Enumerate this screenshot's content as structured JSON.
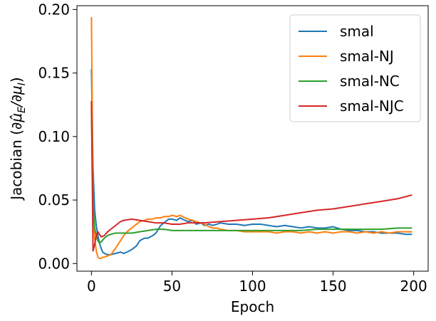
{
  "chart_data": {
    "type": "line",
    "title": "",
    "xlabel": "Epoch",
    "ylabel_prefix": "Jacobian (",
    "ylabel_math": "∂μ̂",
    "ylabel_sub1": "E",
    "ylabel_mid": "/∂μ",
    "ylabel_sub2": "I",
    "ylabel_suffix": ")",
    "xlim": [
      -9,
      209
    ],
    "ylim": [
      -0.006,
      0.203
    ],
    "xticks": [
      0,
      50,
      100,
      150,
      200
    ],
    "xtick_labels": [
      "0",
      "50",
      "100",
      "150",
      "200"
    ],
    "yticks": [
      0.0,
      0.05,
      0.1,
      0.15,
      0.2
    ],
    "ytick_labels": [
      "0.00",
      "0.05",
      "0.10",
      "0.15",
      "0.20"
    ],
    "legend_position": "top-right",
    "series": [
      {
        "name": "smal",
        "color": "#1f77b4",
        "x": [
          0,
          1,
          2,
          3,
          4,
          5,
          6,
          7,
          8,
          10,
          12,
          15,
          18,
          20,
          22,
          25,
          28,
          30,
          33,
          35,
          38,
          40,
          43,
          45,
          48,
          50,
          53,
          55,
          58,
          60,
          63,
          65,
          68,
          70,
          73,
          75,
          78,
          80,
          85,
          90,
          95,
          100,
          105,
          110,
          115,
          120,
          125,
          130,
          135,
          140,
          145,
          150,
          155,
          160,
          165,
          170,
          175,
          180,
          185,
          190,
          195,
          199
        ],
        "y": [
          0.153,
          0.075,
          0.042,
          0.03,
          0.022,
          0.016,
          0.012,
          0.009,
          0.008,
          0.007,
          0.007,
          0.008,
          0.009,
          0.008,
          0.009,
          0.011,
          0.014,
          0.018,
          0.02,
          0.02,
          0.022,
          0.024,
          0.03,
          0.032,
          0.035,
          0.035,
          0.034,
          0.036,
          0.034,
          0.033,
          0.034,
          0.031,
          0.032,
          0.03,
          0.031,
          0.03,
          0.031,
          0.032,
          0.031,
          0.031,
          0.03,
          0.031,
          0.031,
          0.03,
          0.029,
          0.03,
          0.029,
          0.028,
          0.029,
          0.028,
          0.028,
          0.029,
          0.027,
          0.026,
          0.026,
          0.025,
          0.025,
          0.024,
          0.024,
          0.024,
          0.023,
          0.023
        ]
      },
      {
        "name": "smal-NJ",
        "color": "#ff7f0e",
        "x": [
          0,
          1,
          2,
          3,
          4,
          5,
          6,
          7,
          8,
          10,
          12,
          15,
          18,
          20,
          22,
          25,
          28,
          30,
          33,
          35,
          38,
          40,
          43,
          45,
          48,
          50,
          53,
          55,
          58,
          60,
          63,
          65,
          68,
          70,
          73,
          75,
          78,
          80,
          85,
          90,
          95,
          100,
          105,
          110,
          115,
          120,
          125,
          130,
          135,
          140,
          145,
          150,
          155,
          160,
          165,
          170,
          175,
          180,
          185,
          190,
          195,
          199
        ],
        "y": [
          0.194,
          0.05,
          0.02,
          0.01,
          0.005,
          0.004,
          0.004,
          0.005,
          0.005,
          0.006,
          0.007,
          0.012,
          0.018,
          0.022,
          0.025,
          0.028,
          0.031,
          0.033,
          0.034,
          0.035,
          0.035,
          0.036,
          0.036,
          0.037,
          0.037,
          0.038,
          0.037,
          0.038,
          0.036,
          0.035,
          0.034,
          0.033,
          0.032,
          0.031,
          0.029,
          0.028,
          0.028,
          0.027,
          0.026,
          0.026,
          0.025,
          0.025,
          0.025,
          0.025,
          0.024,
          0.025,
          0.025,
          0.024,
          0.025,
          0.024,
          0.025,
          0.024,
          0.025,
          0.025,
          0.024,
          0.025,
          0.024,
          0.025,
          0.024,
          0.025,
          0.025,
          0.025
        ]
      },
      {
        "name": "smal-NC",
        "color": "#2ca02c",
        "x": [
          0,
          1,
          2,
          3,
          4,
          5,
          6,
          8,
          10,
          12,
          15,
          18,
          20,
          25,
          30,
          35,
          40,
          45,
          50,
          55,
          60,
          70,
          80,
          90,
          100,
          110,
          120,
          130,
          140,
          150,
          160,
          170,
          180,
          190,
          199
        ],
        "y": [
          0.122,
          0.045,
          0.028,
          0.022,
          0.018,
          0.016,
          0.017,
          0.02,
          0.022,
          0.023,
          0.024,
          0.024,
          0.024,
          0.024,
          0.025,
          0.026,
          0.027,
          0.027,
          0.026,
          0.026,
          0.026,
          0.026,
          0.026,
          0.026,
          0.026,
          0.026,
          0.026,
          0.026,
          0.027,
          0.027,
          0.027,
          0.027,
          0.027,
          0.028,
          0.028
        ]
      },
      {
        "name": "smal-NJC",
        "color": "#d62728",
        "x": [
          0,
          1,
          2,
          3,
          4,
          5,
          6,
          8,
          10,
          12,
          15,
          18,
          20,
          25,
          30,
          35,
          40,
          45,
          50,
          55,
          60,
          70,
          80,
          90,
          100,
          110,
          120,
          130,
          140,
          150,
          160,
          170,
          180,
          190,
          199
        ],
        "y": [
          0.128,
          0.01,
          0.015,
          0.022,
          0.025,
          0.023,
          0.021,
          0.022,
          0.025,
          0.027,
          0.03,
          0.033,
          0.034,
          0.035,
          0.034,
          0.033,
          0.032,
          0.032,
          0.031,
          0.031,
          0.032,
          0.032,
          0.033,
          0.034,
          0.035,
          0.036,
          0.038,
          0.04,
          0.042,
          0.043,
          0.045,
          0.047,
          0.049,
          0.051,
          0.054
        ]
      }
    ]
  }
}
